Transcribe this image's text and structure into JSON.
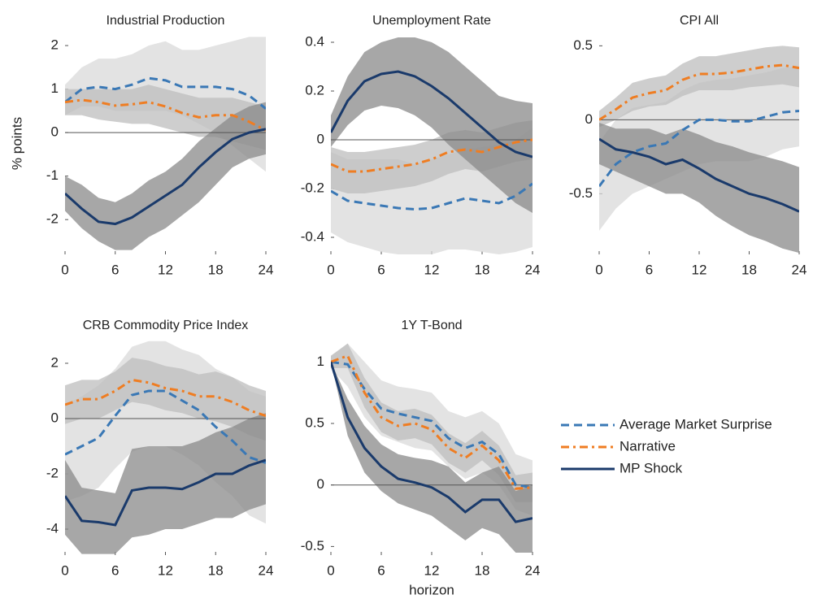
{
  "chart_data": [
    {
      "type": "line",
      "title": "Industrial Production",
      "ylabel": "% points",
      "x": [
        0,
        2,
        4,
        6,
        8,
        10,
        12,
        14,
        16,
        18,
        20,
        22,
        24
      ],
      "xlim": [
        0,
        24
      ],
      "xticks": [
        0,
        6,
        12,
        18,
        24
      ],
      "ylim": [
        -2.8,
        2.3
      ],
      "yticks": [
        -2,
        -1,
        0,
        1,
        2
      ],
      "series": [
        {
          "name": "Average Market Surprise",
          "color": "#3a78b5",
          "dash": "dash",
          "band_color": "#dadada",
          "values": [
            0.7,
            1.0,
            1.05,
            1.0,
            1.1,
            1.25,
            1.2,
            1.05,
            1.05,
            1.05,
            1.0,
            0.85,
            0.55
          ],
          "lower": [
            0.4,
            0.6,
            0.6,
            0.5,
            0.5,
            0.5,
            0.5,
            0.4,
            0.2,
            0,
            -0.3,
            -0.6,
            -0.9
          ],
          "upper": [
            1.1,
            1.5,
            1.7,
            1.7,
            1.8,
            2.0,
            2.1,
            1.9,
            1.9,
            2.0,
            2.1,
            2.2,
            2.2
          ]
        },
        {
          "name": "Narrative",
          "color": "#ef7d22",
          "dash": "dashdot",
          "band_color": "#bdbdbd",
          "values": [
            0.7,
            0.75,
            0.7,
            0.62,
            0.65,
            0.7,
            0.6,
            0.45,
            0.35,
            0.4,
            0.4,
            0.25,
            0.05
          ],
          "lower": [
            0.4,
            0.4,
            0.3,
            0.25,
            0.2,
            0.2,
            0.1,
            0,
            -0.1,
            -0.1,
            -0.2,
            -0.3,
            -0.4
          ],
          "upper": [
            1.0,
            1.0,
            1.0,
            1.0,
            1.0,
            1.1,
            1.0,
            0.9,
            0.8,
            0.8,
            0.8,
            0.7,
            0.6
          ]
        },
        {
          "name": "MP Shock",
          "color": "#1a3a6b",
          "dash": "solid",
          "band_color": "#8a8a8a",
          "values": [
            -1.4,
            -1.75,
            -2.05,
            -2.1,
            -1.95,
            -1.7,
            -1.45,
            -1.2,
            -0.8,
            -0.45,
            -0.15,
            0.0,
            0.08
          ],
          "lower": [
            -1.8,
            -2.2,
            -2.5,
            -2.7,
            -2.7,
            -2.4,
            -2.2,
            -1.9,
            -1.6,
            -1.2,
            -0.8,
            -0.6,
            -0.5
          ],
          "upper": [
            -1.0,
            -1.2,
            -1.5,
            -1.6,
            -1.4,
            -1.1,
            -0.9,
            -0.6,
            -0.2,
            0.1,
            0.4,
            0.6,
            0.7
          ]
        }
      ]
    },
    {
      "type": "line",
      "title": "Unemployment Rate",
      "x": [
        0,
        2,
        4,
        6,
        8,
        10,
        12,
        14,
        16,
        18,
        20,
        22,
        24
      ],
      "xlim": [
        0,
        24
      ],
      "xticks": [
        0,
        6,
        12,
        18,
        24
      ],
      "ylim": [
        -0.47,
        0.44
      ],
      "yticks": [
        -0.4,
        -0.2,
        0,
        0.2,
        0.4
      ],
      "series": [
        {
          "name": "Average Market Surprise",
          "color": "#3a78b5",
          "dash": "dash",
          "band_color": "#dadada",
          "values": [
            -0.21,
            -0.25,
            -0.26,
            -0.27,
            -0.28,
            -0.285,
            -0.28,
            -0.26,
            -0.24,
            -0.25,
            -0.26,
            -0.23,
            -0.18
          ],
          "lower": [
            -0.38,
            -0.42,
            -0.44,
            -0.46,
            -0.47,
            -0.47,
            -0.47,
            -0.45,
            -0.45,
            -0.46,
            -0.47,
            -0.46,
            -0.44
          ],
          "upper": [
            -0.05,
            -0.08,
            -0.08,
            -0.08,
            -0.08,
            -0.1,
            -0.08,
            -0.06,
            -0.04,
            -0.03,
            -0.02,
            0.0,
            0.05
          ]
        },
        {
          "name": "Narrative",
          "color": "#ef7d22",
          "dash": "dashdot",
          "band_color": "#bdbdbd",
          "values": [
            -0.1,
            -0.13,
            -0.13,
            -0.12,
            -0.11,
            -0.1,
            -0.08,
            -0.05,
            -0.04,
            -0.05,
            -0.03,
            -0.01,
            0.0
          ],
          "lower": [
            -0.2,
            -0.22,
            -0.22,
            -0.21,
            -0.2,
            -0.19,
            -0.17,
            -0.14,
            -0.12,
            -0.13,
            -0.11,
            -0.09,
            -0.08
          ],
          "upper": [
            -0.03,
            -0.05,
            -0.05,
            -0.04,
            -0.03,
            -0.02,
            0.0,
            0.03,
            0.04,
            0.03,
            0.05,
            0.07,
            0.08
          ]
        },
        {
          "name": "MP Shock",
          "color": "#1a3a6b",
          "dash": "solid",
          "band_color": "#8a8a8a",
          "values": [
            0.03,
            0.16,
            0.24,
            0.27,
            0.28,
            0.26,
            0.22,
            0.17,
            0.11,
            0.05,
            -0.01,
            -0.05,
            -0.07
          ],
          "lower": [
            -0.03,
            0.06,
            0.12,
            0.14,
            0.13,
            0.1,
            0.05,
            -0.02,
            -0.08,
            -0.14,
            -0.2,
            -0.26,
            -0.3
          ],
          "upper": [
            0.1,
            0.26,
            0.36,
            0.4,
            0.42,
            0.42,
            0.4,
            0.36,
            0.3,
            0.24,
            0.18,
            0.16,
            0.15
          ]
        }
      ]
    },
    {
      "type": "line",
      "title": "CPI All",
      "x": [
        0,
        2,
        4,
        6,
        8,
        10,
        12,
        14,
        16,
        18,
        20,
        22,
        24
      ],
      "xlim": [
        0,
        24
      ],
      "xticks": [
        0,
        6,
        12,
        18,
        24
      ],
      "ylim": [
        -0.91,
        0.59
      ],
      "yticks": [
        -0.5,
        0,
        0.5
      ],
      "series": [
        {
          "name": "Average Market Surprise",
          "color": "#3a78b5",
          "dash": "dash",
          "band_color": "#dadada",
          "values": [
            -0.45,
            -0.3,
            -0.22,
            -0.18,
            -0.16,
            -0.07,
            0.0,
            0.0,
            -0.01,
            -0.01,
            0.02,
            0.05,
            0.06
          ],
          "lower": [
            -0.75,
            -0.6,
            -0.5,
            -0.45,
            -0.4,
            -0.35,
            -0.3,
            -0.28,
            -0.28,
            -0.28,
            -0.25,
            -0.2,
            -0.18
          ],
          "upper": [
            -0.15,
            0.0,
            0.08,
            0.1,
            0.12,
            0.2,
            0.25,
            0.27,
            0.28,
            0.3,
            0.32,
            0.35,
            0.36
          ]
        },
        {
          "name": "Narrative",
          "color": "#ef7d22",
          "dash": "dashdot",
          "band_color": "#bdbdbd",
          "values": [
            0.0,
            0.07,
            0.15,
            0.18,
            0.2,
            0.27,
            0.31,
            0.31,
            0.32,
            0.34,
            0.36,
            0.37,
            0.35
          ],
          "lower": [
            -0.05,
            0.0,
            0.06,
            0.09,
            0.1,
            0.16,
            0.2,
            0.2,
            0.2,
            0.22,
            0.23,
            0.24,
            0.22
          ],
          "upper": [
            0.06,
            0.15,
            0.25,
            0.28,
            0.3,
            0.38,
            0.43,
            0.43,
            0.45,
            0.47,
            0.49,
            0.5,
            0.49
          ]
        },
        {
          "name": "MP Shock",
          "color": "#1a3a6b",
          "dash": "solid",
          "band_color": "#8a8a8a",
          "values": [
            -0.13,
            -0.2,
            -0.22,
            -0.25,
            -0.3,
            -0.27,
            -0.33,
            -0.4,
            -0.45,
            -0.5,
            -0.53,
            -0.57,
            -0.62
          ],
          "lower": [
            -0.3,
            -0.35,
            -0.4,
            -0.45,
            -0.5,
            -0.5,
            -0.56,
            -0.65,
            -0.72,
            -0.78,
            -0.82,
            -0.87,
            -0.9
          ],
          "upper": [
            -0.02,
            -0.06,
            -0.06,
            -0.06,
            -0.1,
            -0.06,
            -0.1,
            -0.15,
            -0.18,
            -0.22,
            -0.25,
            -0.28,
            -0.32
          ]
        }
      ]
    },
    {
      "type": "line",
      "title": "CRB Commodity Price Index",
      "x": [
        0,
        2,
        4,
        6,
        8,
        10,
        12,
        14,
        16,
        18,
        20,
        22,
        24
      ],
      "xlim": [
        0,
        24
      ],
      "xticks": [
        0,
        6,
        12,
        18,
        24
      ],
      "ylim": [
        -4.94,
        2.94
      ],
      "yticks": [
        -4,
        -2,
        0,
        2
      ],
      "series": [
        {
          "name": "Average Market Surprise",
          "color": "#3a78b5",
          "dash": "dash",
          "band_color": "#dadada",
          "values": [
            -1.3,
            -1.0,
            -0.7,
            0.1,
            0.85,
            1.0,
            1.0,
            0.65,
            0.3,
            -0.3,
            -0.8,
            -1.4,
            -1.6
          ],
          "lower": [
            -3.0,
            -2.8,
            -2.5,
            -1.8,
            -1.2,
            -1.0,
            -1.0,
            -1.3,
            -1.7,
            -2.3,
            -2.8,
            -3.5,
            -3.8
          ],
          "upper": [
            0.5,
            0.8,
            1.2,
            1.8,
            2.6,
            2.8,
            2.8,
            2.5,
            2.3,
            1.8,
            1.5,
            1.0,
            0.8
          ]
        },
        {
          "name": "Narrative",
          "color": "#ef7d22",
          "dash": "dashdot",
          "band_color": "#bdbdbd",
          "values": [
            0.5,
            0.7,
            0.7,
            1.0,
            1.4,
            1.3,
            1.1,
            1.0,
            0.8,
            0.8,
            0.6,
            0.3,
            0.1
          ],
          "lower": [
            -0.2,
            0.0,
            0.0,
            0.3,
            0.6,
            0.5,
            0.3,
            0.2,
            0.0,
            -0.1,
            -0.3,
            -0.6,
            -0.8
          ],
          "upper": [
            1.2,
            1.4,
            1.4,
            1.7,
            2.2,
            2.1,
            1.9,
            1.8,
            1.6,
            1.7,
            1.5,
            1.2,
            1.0
          ]
        },
        {
          "name": "MP Shock",
          "color": "#1a3a6b",
          "dash": "solid",
          "band_color": "#8a8a8a",
          "values": [
            -2.8,
            -3.7,
            -3.75,
            -3.85,
            -2.6,
            -2.5,
            -2.5,
            -2.55,
            -2.3,
            -2.0,
            -2.0,
            -1.7,
            -1.5
          ],
          "lower": [
            -4.2,
            -4.9,
            -4.9,
            -4.9,
            -4.3,
            -4.2,
            -4.0,
            -4.0,
            -3.8,
            -3.6,
            -3.6,
            -3.3,
            -3.1
          ],
          "upper": [
            -1.5,
            -2.5,
            -2.6,
            -2.7,
            -1.1,
            -1.0,
            -1.0,
            -1.0,
            -0.8,
            -0.5,
            -0.3,
            0.0,
            0.2
          ]
        }
      ]
    },
    {
      "type": "line",
      "title": "1Y T-Bond",
      "xlabel": "horizon",
      "x": [
        0,
        2,
        4,
        6,
        8,
        10,
        12,
        14,
        16,
        18,
        20,
        22,
        24
      ],
      "xlim": [
        0,
        24
      ],
      "xticks": [
        0,
        6,
        12,
        18,
        24
      ],
      "ylim": [
        -0.57,
        1.2
      ],
      "yticks": [
        -0.5,
        0,
        0.5,
        1
      ],
      "series": [
        {
          "name": "Average Market Surprise",
          "color": "#3a78b5",
          "dash": "dash",
          "band_color": "#dadada",
          "values": [
            1.0,
            0.98,
            0.78,
            0.62,
            0.58,
            0.55,
            0.52,
            0.38,
            0.3,
            0.35,
            0.25,
            0.0,
            -0.02
          ],
          "lower": [
            0.95,
            0.8,
            0.55,
            0.4,
            0.35,
            0.3,
            0.28,
            0.15,
            0.05,
            0.1,
            0.0,
            -0.2,
            -0.25
          ],
          "upper": [
            1.05,
            1.15,
            1.0,
            0.85,
            0.8,
            0.78,
            0.75,
            0.6,
            0.55,
            0.6,
            0.5,
            0.25,
            0.2
          ]
        },
        {
          "name": "Narrative",
          "color": "#ef7d22",
          "dash": "dashdot",
          "band_color": "#bdbdbd",
          "values": [
            1.0,
            1.05,
            0.75,
            0.55,
            0.48,
            0.5,
            0.45,
            0.3,
            0.22,
            0.32,
            0.2,
            -0.03,
            -0.02
          ],
          "lower": [
            0.95,
            0.95,
            0.63,
            0.43,
            0.36,
            0.38,
            0.33,
            0.18,
            0.1,
            0.2,
            0.08,
            -0.14,
            -0.14
          ],
          "upper": [
            1.05,
            1.15,
            0.87,
            0.67,
            0.6,
            0.62,
            0.57,
            0.42,
            0.34,
            0.44,
            0.32,
            0.08,
            0.1
          ]
        },
        {
          "name": "MP Shock",
          "color": "#1a3a6b",
          "dash": "solid",
          "band_color": "#8a8a8a",
          "values": [
            1.0,
            0.55,
            0.3,
            0.15,
            0.05,
            0.02,
            -0.02,
            -0.1,
            -0.22,
            -0.12,
            -0.12,
            -0.3,
            -0.27
          ],
          "lower": [
            1.0,
            0.4,
            0.1,
            -0.05,
            -0.15,
            -0.2,
            -0.25,
            -0.35,
            -0.45,
            -0.35,
            -0.4,
            -0.55,
            -0.55
          ],
          "upper": [
            1.0,
            0.7,
            0.48,
            0.33,
            0.25,
            0.22,
            0.2,
            0.15,
            0.02,
            0.1,
            0.15,
            -0.05,
            0.0
          ]
        }
      ]
    }
  ]
}
